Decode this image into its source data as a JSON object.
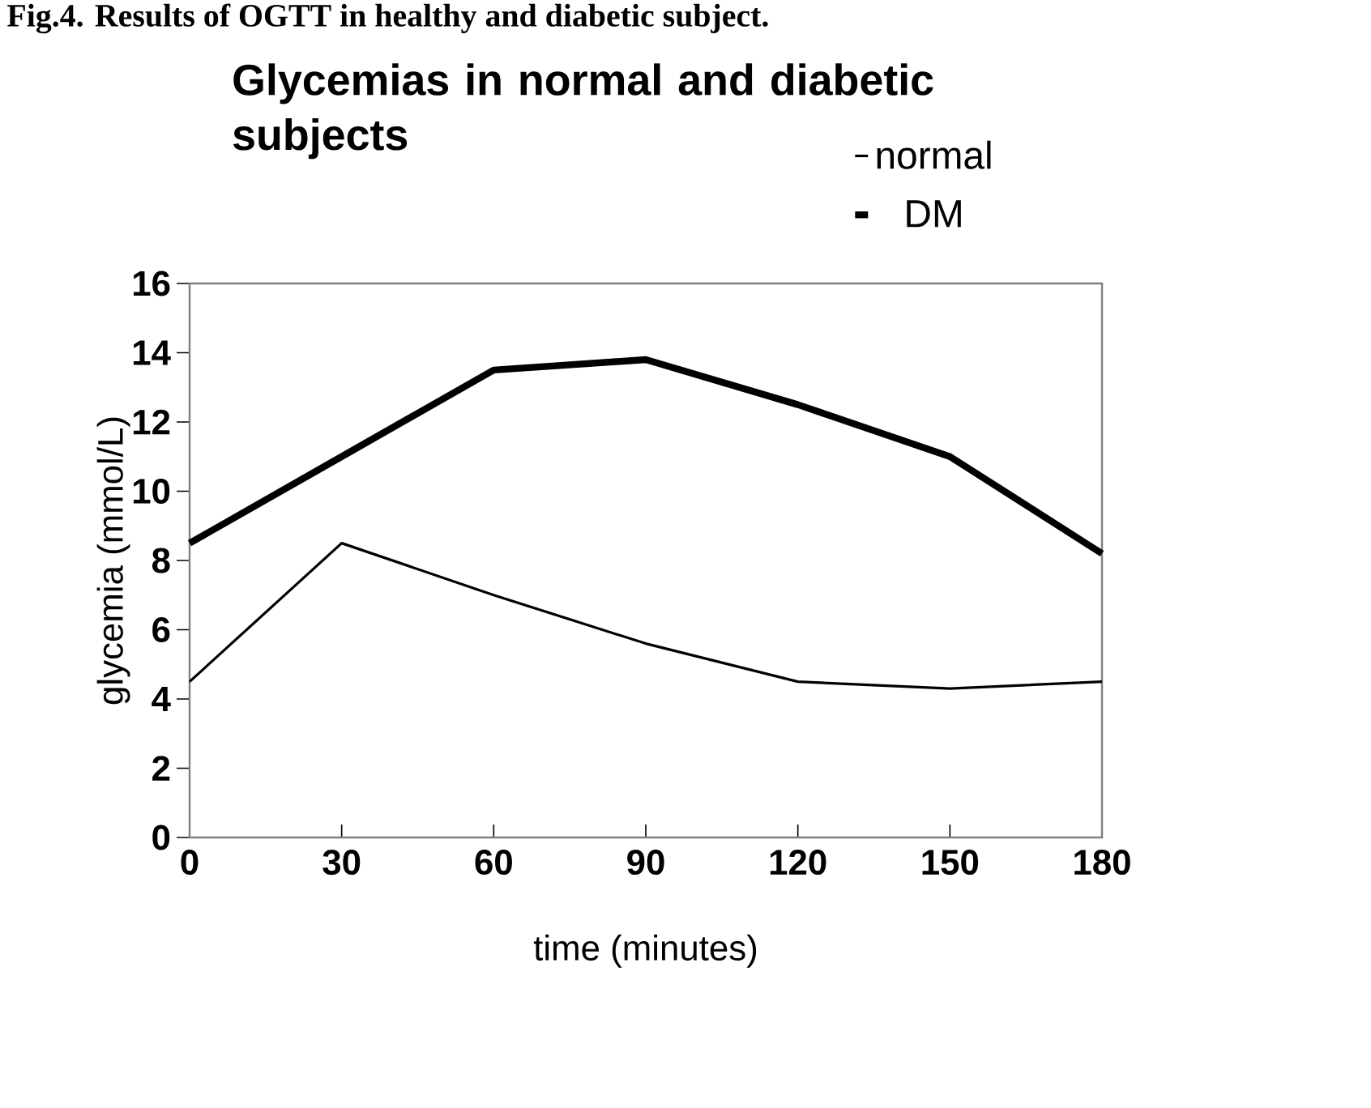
{
  "chart_data": {
    "type": "line",
    "title": "Glycemias in normal and diabetic subjects",
    "xlabel": "time (minutes)",
    "ylabel": "glycemia (mmol/L)",
    "annotations": [
      "Fig.4. Results of OGTT in healthy and diabetic subject."
    ],
    "x": [
      0,
      30,
      60,
      90,
      120,
      150,
      180
    ],
    "series": [
      {
        "name": "normal",
        "color": "#000000",
        "values": [
          4.5,
          8.5,
          7,
          5.6,
          4.5,
          4.3,
          4.5
        ]
      },
      {
        "name": "DM",
        "color": "#000000",
        "values": [
          8.5,
          11,
          13.5,
          13.8,
          12.5,
          11,
          8.2
        ]
      }
    ],
    "xlim": [
      0,
      180
    ],
    "xticks": [
      0,
      30,
      60,
      90,
      120,
      150,
      180
    ],
    "ylim": [
      0,
      16
    ],
    "yticks": [
      0,
      2,
      4,
      6,
      8,
      10,
      12,
      14,
      16
    ],
    "grid": false,
    "legend": "top right",
    "marker": "none",
    "line_style": "solid"
  }
}
